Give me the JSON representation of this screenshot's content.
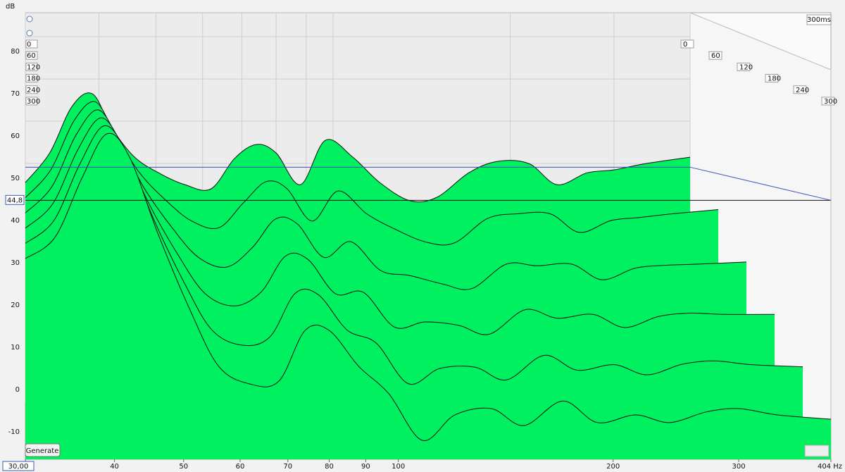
{
  "chart_data": {
    "type": "waterfall",
    "y_axis_label": "dB",
    "time_range_label": "300ms",
    "generate_button": "Generate",
    "xscale": "log",
    "xlim": [
      30,
      404
    ],
    "xticks": [
      {
        "value": 30,
        "label": "30,00"
      },
      40,
      50,
      60,
      70,
      80,
      90,
      100,
      200,
      300,
      {
        "value": 404,
        "label": "404 Hz"
      }
    ],
    "ylim": [
      -16.5,
      89.2
    ],
    "yticks": [
      -10,
      0,
      10,
      20,
      30,
      40,
      50,
      60,
      70,
      80
    ],
    "time_ticks": [
      0,
      60,
      120,
      180,
      240,
      300
    ],
    "cursor": {
      "value": 44.8,
      "label": "44,8"
    },
    "color": "#00f060",
    "line_color": "#111111",
    "grid": true,
    "frequencies": [
      30,
      33,
      36,
      39,
      42,
      46,
      51,
      56,
      62,
      68,
      74,
      80,
      88,
      97,
      108,
      120,
      135,
      150,
      170,
      190,
      215,
      240,
      270,
      300,
      340,
      404
    ],
    "series": [
      {
        "time": 0,
        "values": [
          49,
          56,
          67,
          70,
          62,
          55,
          51,
          48.5,
          47.5,
          54.7,
          58,
          56,
          48.5,
          59,
          55,
          49,
          44.7,
          45.5,
          51.3,
          54,
          53.5,
          48.5,
          51.3,
          52,
          53.5,
          55
        ]
      },
      {
        "time": 60,
        "values": [
          45.4,
          52,
          63.6,
          68.1,
          60.6,
          51.4,
          44.6,
          39.9,
          38.3,
          44.2,
          49.2,
          47.6,
          39.9,
          47,
          41.6,
          38,
          34.9,
          34.7,
          40.5,
          41.6,
          41.6,
          37.2,
          40,
          40.7,
          41.6,
          42.6
        ]
      },
      {
        "time": 120,
        "values": [
          41.8,
          48,
          60.2,
          66.2,
          59.2,
          47.8,
          38.2,
          31.3,
          29,
          33.6,
          40.4,
          39.2,
          31.3,
          35,
          28.2,
          27,
          25,
          23.9,
          29.7,
          29.3,
          29.7,
          26,
          28.7,
          29.4,
          29.7,
          30.2
        ]
      },
      {
        "time": 180,
        "values": [
          38.2,
          44,
          56.8,
          64.3,
          57.8,
          44.2,
          31.8,
          22.7,
          19.8,
          23.1,
          31.6,
          30.8,
          22.7,
          23,
          14.8,
          16,
          15.2,
          13.1,
          18.9,
          16.9,
          17.8,
          14.7,
          17.3,
          18.1,
          17.8,
          17.8
        ]
      },
      {
        "time": 240,
        "values": [
          34.6,
          40,
          53.4,
          62.4,
          56.4,
          40.6,
          25.4,
          14.1,
          10.5,
          12.5,
          22.8,
          22.4,
          14.1,
          11,
          1.4,
          5,
          5.3,
          2.3,
          8.1,
          4.6,
          5.9,
          3.5,
          6,
          6.8,
          5.9,
          5.4
        ]
      },
      {
        "time": 300,
        "values": [
          31,
          36,
          50,
          60.5,
          55,
          37,
          19,
          5.5,
          1.3,
          2,
          14,
          14,
          5.5,
          -1,
          -12,
          -6,
          -4.5,
          -8.5,
          -2.7,
          -7.8,
          -6,
          -7.8,
          -5.3,
          -4.5,
          -6,
          -7
        ]
      }
    ]
  }
}
